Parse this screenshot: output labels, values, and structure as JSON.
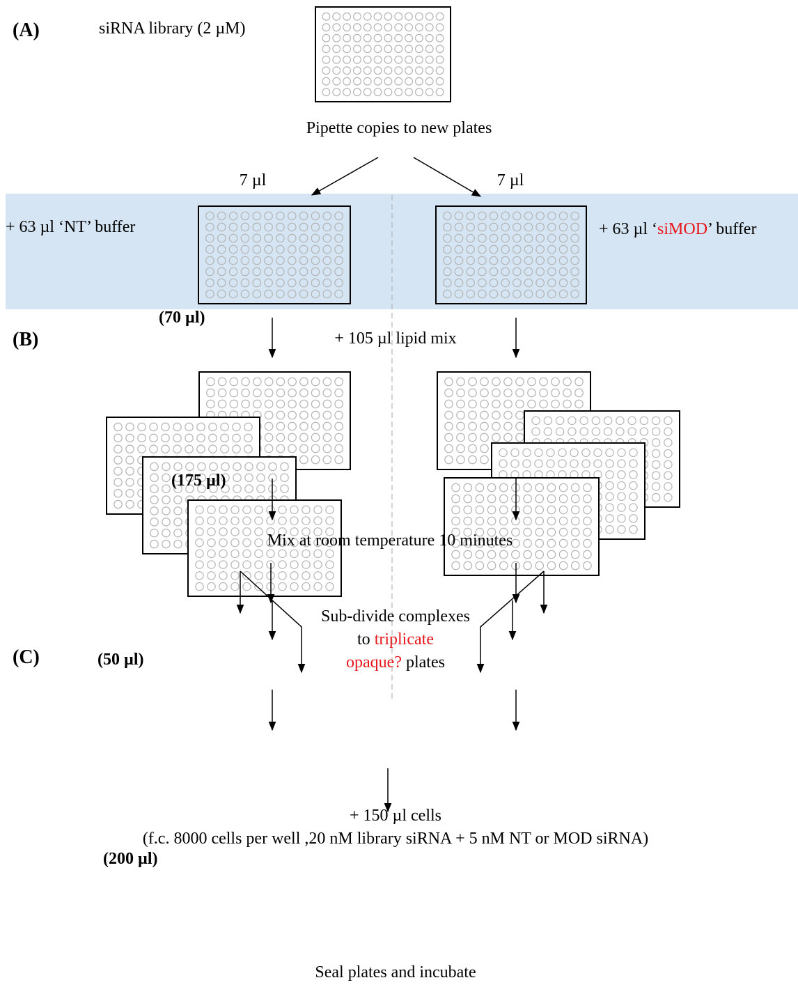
{
  "labels": {
    "a": "(A)",
    "b": "(B)",
    "c": "(C)"
  },
  "library": "siRNA library (2 µM)",
  "pipette": "Pipette copies to new plates",
  "volume_left": "7 µl",
  "volume_right": "7 µl",
  "buffer_nt": "+ 63 µl ‘NT’ buffer",
  "buffer_simod": {
    "before": "+ 63 µl ‘",
    "highlight": "siMOD",
    "after": "’ buffer"
  },
  "vol_70": "(70 µl)",
  "lipid": "+ 105 µl lipid mix",
  "vol_175": "(175 µl)",
  "mix": "Mix at room temperature 10 minutes",
  "subdivide": {
    "line1": "Sub-divide complexes",
    "line2_before": "to ",
    "line2_highlight": "triplicate",
    "line3_highlight": "opaque?",
    "line3_after": " plates"
  },
  "vol_50": "(50 µl)",
  "cells": "+ 150 µl cells",
  "final_conc": "(f.c. 8000 cells per well ,20 nM library siRNA + 5 nM NT or MOD siRNA)",
  "vol_200": "(200 µl)",
  "seal": "Seal plates and incubate"
}
